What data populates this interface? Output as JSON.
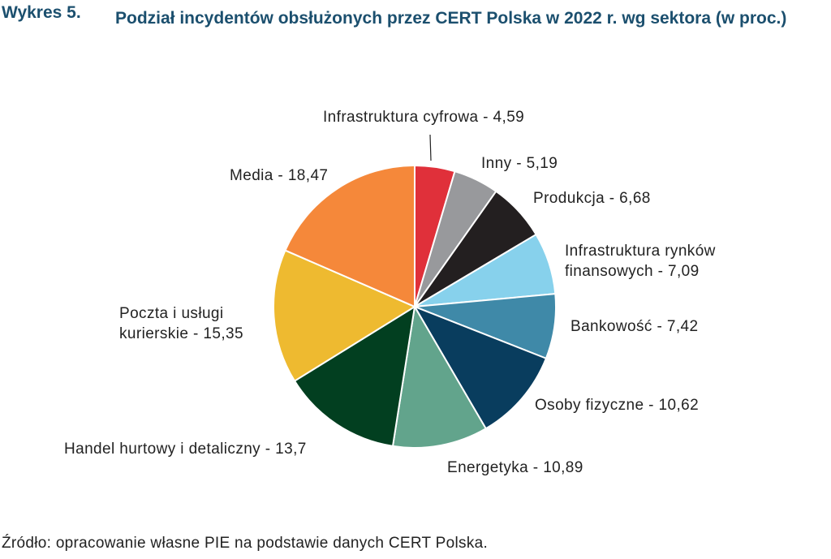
{
  "header": {
    "figure_number": "Wykres 5.",
    "title": "Podział incydentów obsłużonych przez CERT Polska w 2022 r. wg sektora (w proc.)"
  },
  "chart_data": {
    "type": "pie",
    "title": "Podział incydentów obsłużonych przez CERT Polska w 2022 r. wg sektora (w proc.)",
    "unit": "%",
    "slices": [
      {
        "label": "Infrastruktura cyfrowa",
        "value": 4.59,
        "value_text": "4,59",
        "color": "#e0303a"
      },
      {
        "label": "Inny",
        "value": 5.19,
        "value_text": "5,19",
        "color": "#98999c"
      },
      {
        "label": "Produkcja",
        "value": 6.68,
        "value_text": "6,68",
        "color": "#231f20"
      },
      {
        "label": "Infrastruktura rynków finansowych",
        "value": 7.09,
        "value_text": "7,09",
        "color": "#87d1ec"
      },
      {
        "label": "Bankowość",
        "value": 7.42,
        "value_text": "7,42",
        "color": "#3f89a8"
      },
      {
        "label": "Osoby fizyczne",
        "value": 10.62,
        "value_text": "10,62",
        "color": "#093d5e"
      },
      {
        "label": "Energetyka",
        "value": 10.89,
        "value_text": "10,89",
        "color": "#62a48c"
      },
      {
        "label": "Handel hurtowy i detaliczny",
        "value": 13.7,
        "value_text": "13,7",
        "color": "#023f20"
      },
      {
        "label": "Poczta i usługi kurierskie",
        "value": 15.35,
        "value_text": "15,35",
        "color": "#eeba30"
      },
      {
        "label": "Media",
        "value": 18.47,
        "value_text": "18,47",
        "color": "#f5883a"
      }
    ],
    "label_lines": [
      [
        "Infrastruktura cyfrowa - 4,59"
      ],
      [
        "Inny - 5,19"
      ],
      [
        "Produkcja - 6,68"
      ],
      [
        "Infrastruktura rynków",
        "finansowych - 7,09"
      ],
      [
        "Bankowość - 7,42"
      ],
      [
        "Osoby fizyczne - 10,62"
      ],
      [
        "Energetyka - 10,89"
      ],
      [
        "Handel hurtowy i detaliczny - 13,7"
      ],
      [
        "Poczta i usługi",
        "kurierskie - 15,35"
      ],
      [
        "Media - 18,47"
      ]
    ]
  },
  "footer": {
    "source": "Źródło: opracowanie własne PIE na podstawie danych CERT Polska."
  }
}
